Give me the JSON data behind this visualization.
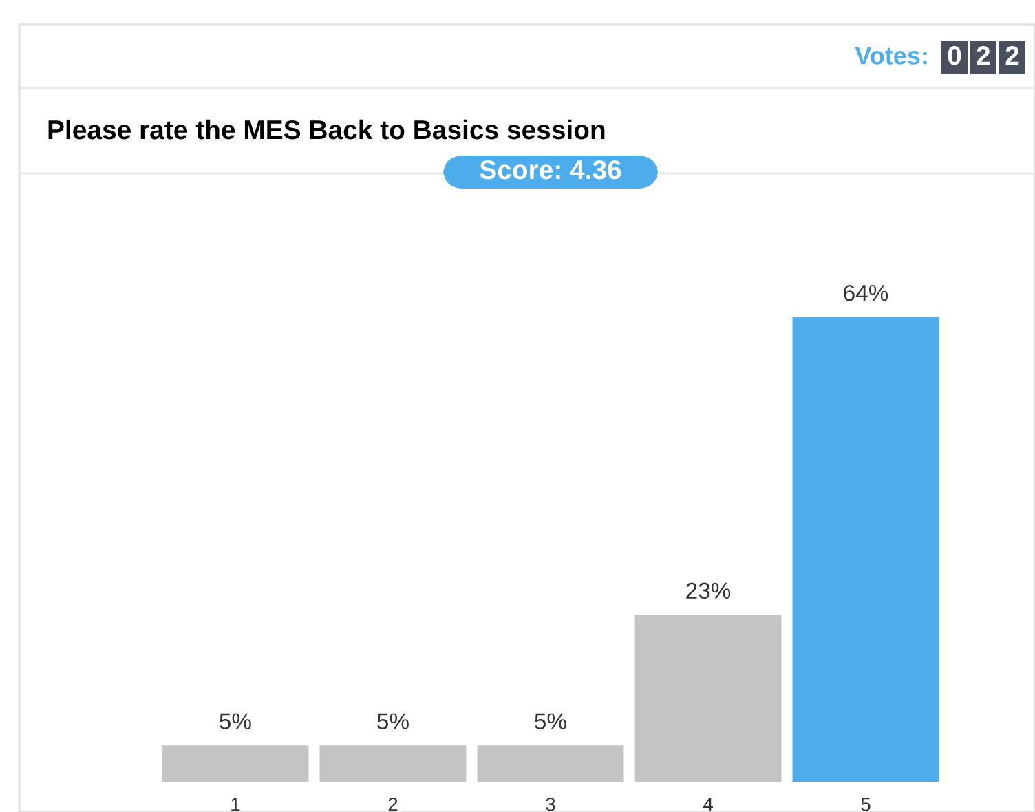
{
  "chart_data": {
    "type": "bar",
    "title": "Please rate the MES Back to Basics session",
    "categories": [
      "1",
      "2",
      "3",
      "4",
      "5"
    ],
    "values": [
      5,
      5,
      5,
      23,
      64
    ],
    "colors": [
      "#c4c4c4",
      "#c4c4c4",
      "#c4c4c4",
      "#c4c4c4",
      "#4dacec"
    ],
    "value_labels": [
      "5%",
      "5%",
      "5%",
      "23%",
      "64%"
    ],
    "annotations": [
      "Votes:",
      "022",
      "Score: 4.36"
    ]
  }
}
